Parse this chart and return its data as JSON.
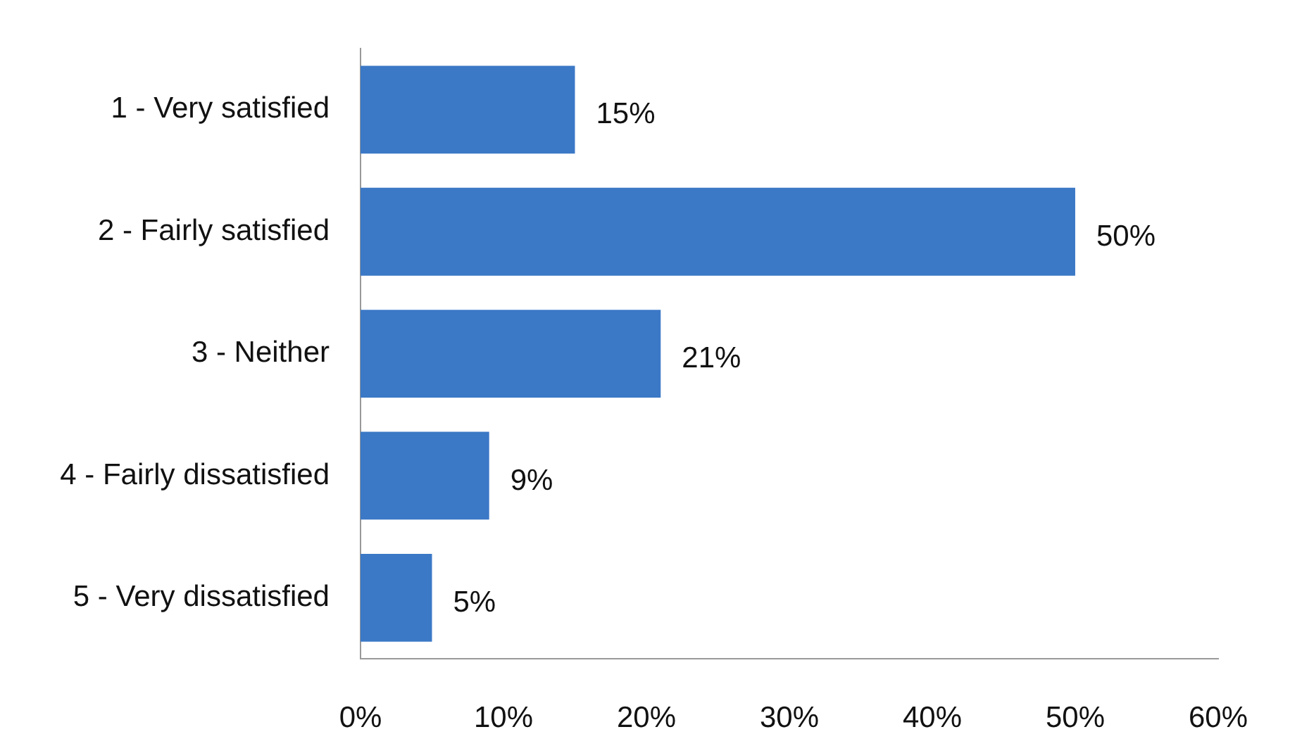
{
  "chart_data": {
    "type": "bar",
    "orientation": "horizontal",
    "categories": [
      "1 - Very satisfied",
      "2 - Fairly satisfied",
      "3 - Neither",
      "4 - Fairly dissatisfied",
      "5 - Very dissatisfied"
    ],
    "values": [
      15,
      50,
      21,
      9,
      5
    ],
    "value_labels": [
      "15%",
      "50%",
      "21%",
      "9%",
      "5%"
    ],
    "color": "#3b78c6",
    "xlim": [
      0,
      60
    ],
    "xticks": [
      {
        "value": 0,
        "label": "0%"
      },
      {
        "value": 10,
        "label": "10%"
      },
      {
        "value": 20,
        "label": "20%"
      },
      {
        "value": 30,
        "label": "30%"
      },
      {
        "value": 40,
        "label": "40%"
      },
      {
        "value": 50,
        "label": "50%"
      },
      {
        "value": 60,
        "label": "60%"
      }
    ]
  }
}
